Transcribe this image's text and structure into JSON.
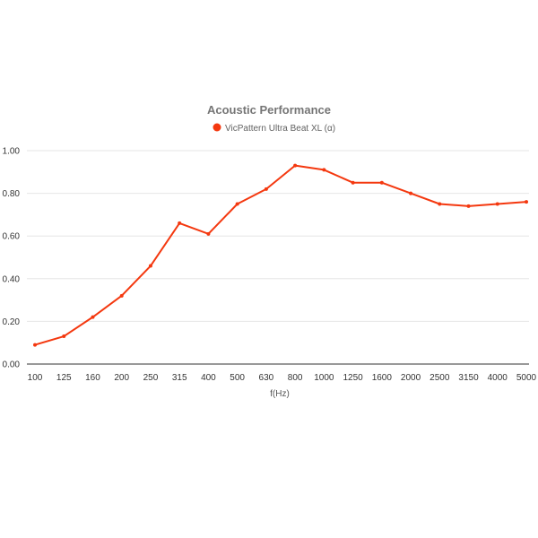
{
  "chart_data": {
    "type": "line",
    "title": "Acoustic Performance",
    "xlabel": "f(Hz)",
    "ylabel": "",
    "categories": [
      "100",
      "125",
      "160",
      "200",
      "250",
      "315",
      "400",
      "500",
      "630",
      "800",
      "1000",
      "1250",
      "1600",
      "2000",
      "2500",
      "3150",
      "4000",
      "5000"
    ],
    "series": [
      {
        "name": "VicPattern Ultra Beat XL (α)",
        "color": "#f4380f",
        "values": [
          0.09,
          0.13,
          0.22,
          0.32,
          0.46,
          0.66,
          0.61,
          0.75,
          0.82,
          0.93,
          0.91,
          0.85,
          0.85,
          0.8,
          0.75,
          0.74,
          0.75,
          0.76
        ]
      }
    ],
    "ylim": [
      0,
      1.0
    ],
    "yticks": [
      "0.00",
      "0.20",
      "0.40",
      "0.60",
      "0.80",
      "1.00"
    ],
    "grid": true,
    "legend_position": "top"
  }
}
